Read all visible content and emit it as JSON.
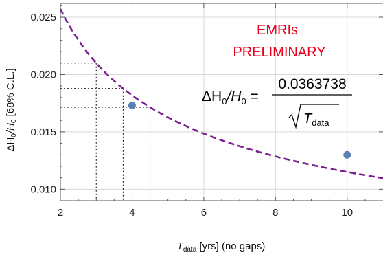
{
  "chart_data": {
    "type": "scatter",
    "xlabel": {
      "main": "T",
      "sub": "data",
      "rest": " [yrs] (no gaps)"
    },
    "ylabel": {
      "pre": "ΔH",
      "sub1": "0",
      "mid": "/H",
      "sub2": "0",
      "rest": " [68% C.L.]"
    },
    "xlim": [
      2,
      11
    ],
    "ylim": [
      0.009,
      0.0262
    ],
    "xticks": [
      2,
      4,
      6,
      8,
      10
    ],
    "yticks": [
      0.01,
      0.015,
      0.02,
      0.025
    ],
    "ytick_labels": [
      "0.010",
      "0.015",
      "0.020",
      "0.025"
    ],
    "grid": true,
    "points": [
      {
        "x": 4,
        "y": 0.0173
      },
      {
        "x": 10,
        "y": 0.013
      }
    ],
    "fit": {
      "coefficient": 0.0363738,
      "form": "c / sqrt(T_data)"
    },
    "guides": [
      {
        "x": 3.0,
        "y": 0.021
      },
      {
        "x": 3.75,
        "y": 0.01878
      },
      {
        "x": 4.5,
        "y": 0.01715
      }
    ],
    "annotations": {
      "line1": "EMRIs",
      "line2": "PRELIMINARY",
      "formula_lhs_a": "ΔH",
      "formula_lhs_sub1": "0",
      "formula_lhs_b": "/H",
      "formula_lhs_sub2": "0",
      "formula_eq": " =",
      "formula_numerator": "0.0363738",
      "formula_denom": "T",
      "formula_denom_sub": "data"
    },
    "colors": {
      "curve": "#7a1f8e",
      "points": "#5b80b4",
      "annotation": "#e8001c",
      "grid": "#d9d9d9",
      "guides": "#000000"
    }
  }
}
